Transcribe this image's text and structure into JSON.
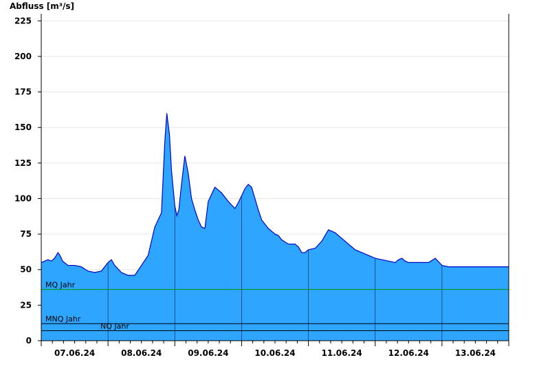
{
  "chart_data": {
    "type": "area",
    "title": "",
    "ylabel": "Abfluss [m³/s]",
    "xlabel": "",
    "ylim": [
      0,
      230
    ],
    "y_ticks": [
      0,
      25,
      50,
      75,
      100,
      125,
      150,
      175,
      200,
      225
    ],
    "x_range": [
      0,
      7
    ],
    "x_tick_labels": [
      "07.06.24",
      "08.06.24",
      "09.06.24",
      "10.06.24",
      "11.06.24",
      "12.06.24",
      "13.06.24"
    ],
    "grid": true,
    "fill_color": "#2ea6ff",
    "line_color": "#0000cc",
    "series": [
      {
        "x": [
          0,
          0.1,
          0.15,
          0.2,
          0.25,
          0.28,
          0.32,
          0.4,
          0.5,
          0.6,
          0.7,
          0.8,
          0.9,
          1.0,
          1.05,
          1.1,
          1.2,
          1.25,
          1.3,
          1.4,
          1.5,
          1.6,
          1.7,
          1.8,
          1.85,
          1.88,
          1.92,
          1.95,
          2.0,
          2.03,
          2.06,
          2.1,
          2.15,
          2.2,
          2.25,
          2.3,
          2.35,
          2.4,
          2.45,
          2.5,
          2.6,
          2.7,
          2.8,
          2.9,
          2.95,
          3.0,
          3.05,
          3.1,
          3.15,
          3.2,
          3.25,
          3.3,
          3.4,
          3.5,
          3.55,
          3.6,
          3.7,
          3.8,
          3.85,
          3.9,
          3.95,
          4.0,
          4.1,
          4.2,
          4.3,
          4.4,
          4.5,
          4.6,
          4.7,
          4.8,
          4.9,
          5.0,
          5.1,
          5.2,
          5.3,
          5.35,
          5.4,
          5.45,
          5.5,
          5.6,
          5.7,
          5.8,
          5.9,
          6.0,
          6.1,
          6.2,
          6.3,
          6.4,
          6.5,
          6.6,
          6.7,
          6.75,
          6.8,
          6.85,
          6.9,
          6.95,
          7.0
        ],
        "values": [
          55,
          57,
          56,
          58,
          62,
          60,
          56,
          53,
          53,
          52,
          49,
          48,
          49,
          55,
          57,
          53,
          48,
          47,
          46,
          46,
          53,
          60,
          80,
          90,
          140,
          160,
          145,
          120,
          95,
          88,
          92,
          110,
          130,
          118,
          100,
          92,
          85,
          80,
          79,
          98,
          108,
          104,
          98,
          93,
          97,
          102,
          107,
          110,
          108,
          100,
          92,
          85,
          79,
          75,
          74,
          71,
          68,
          68,
          66,
          62,
          62,
          64,
          65,
          70,
          78,
          76,
          72,
          68,
          64,
          62,
          60,
          58,
          57,
          56,
          55,
          57,
          58,
          56,
          55,
          55,
          55,
          55,
          58,
          53,
          52,
          52,
          52,
          52,
          52,
          52,
          52,
          52,
          52,
          52,
          52,
          52,
          52
        ]
      }
    ],
    "reference_lines": [
      {
        "name": "MQ Jahr",
        "value": 36,
        "color": "#009900"
      },
      {
        "name": "MNQ Jahr",
        "value": 12,
        "color": "#000000"
      },
      {
        "name": "NQ Jahr",
        "value": 7,
        "color": "#000000"
      }
    ]
  }
}
